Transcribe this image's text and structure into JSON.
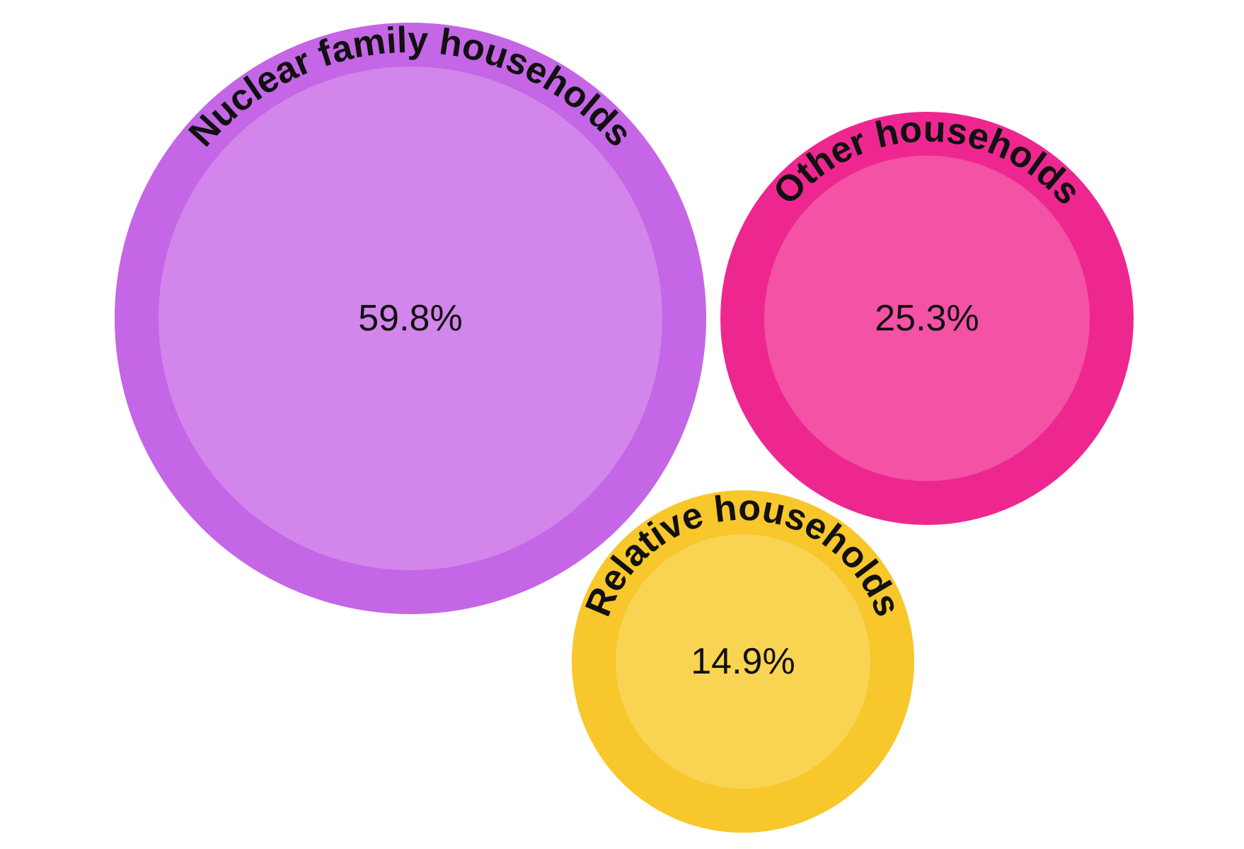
{
  "chart_data": {
    "type": "bubble",
    "title": "",
    "unit": "%",
    "bubbles": [
      {
        "name": "Nuclear family households",
        "value": 59.8,
        "label": "59.8%",
        "outer_color": "#c466e6",
        "inner_color": "#d285eb"
      },
      {
        "name": "Other households",
        "value": 25.3,
        "label": "25.3%",
        "outer_color": "#ee2790",
        "inner_color": "#f452a5"
      },
      {
        "name": "Relative households",
        "value": 14.9,
        "label": "14.9%",
        "outer_color": "#f7c72b",
        "inner_color": "#f9d352"
      }
    ]
  }
}
